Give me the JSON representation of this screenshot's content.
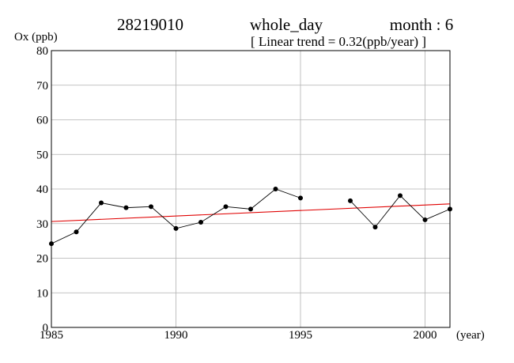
{
  "header": {
    "station": "28219010",
    "period": "whole_day",
    "month": "month : 6",
    "trend": "[ Linear trend = 0.32(ppb/year) ]"
  },
  "chart_data": {
    "type": "line",
    "ylabel": "Ox (ppb)",
    "xlabel": "(year)",
    "xlim": [
      1985,
      2001
    ],
    "ylim": [
      0,
      80
    ],
    "x_ticks": [
      1985,
      1990,
      1995,
      2000
    ],
    "y_ticks": [
      0,
      10,
      20,
      30,
      40,
      50,
      60,
      70,
      80
    ],
    "grid": true,
    "series": [
      {
        "points": [
          [
            1985,
            24.2
          ],
          [
            1986,
            27.6
          ],
          [
            1987,
            36.0
          ],
          [
            1988,
            34.6
          ],
          [
            1989,
            34.9
          ],
          [
            1990,
            28.6
          ],
          [
            1991,
            30.4
          ],
          [
            1992,
            34.9
          ],
          [
            1993,
            34.2
          ],
          [
            1994,
            40.0
          ],
          [
            1995,
            37.4
          ],
          [
            1996,
            null
          ],
          [
            1997,
            36.6
          ],
          [
            1998,
            29.0
          ],
          [
            1999,
            38.1
          ],
          [
            2000,
            31.1
          ],
          [
            2001,
            34.2
          ]
        ],
        "color": "#000000"
      }
    ],
    "trend_line": {
      "x": [
        1985,
        2001
      ],
      "y": [
        30.6,
        35.7
      ],
      "color": "#e00000"
    }
  }
}
